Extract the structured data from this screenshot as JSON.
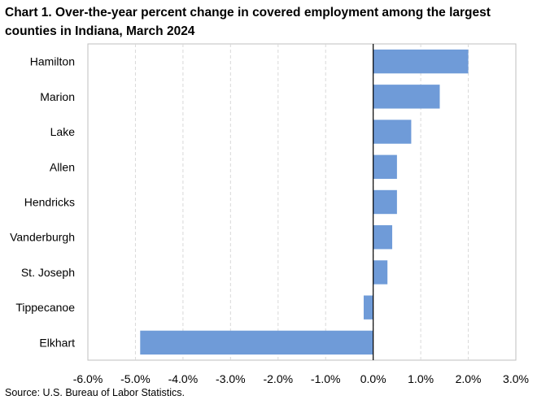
{
  "chart_data": {
    "type": "bar",
    "orientation": "horizontal",
    "title": "Chart 1. Over-the-year percent change in covered employment among the largest counties in Indiana, March 2024",
    "source": "Source: U.S. Bureau of Labor Statistics.",
    "categories": [
      "Hamilton",
      "Marion",
      "Lake",
      "Allen",
      "Hendricks",
      "Vanderburgh",
      "St. Joseph",
      "Tippecanoe",
      "Elkhart"
    ],
    "values": [
      2.0,
      1.4,
      0.8,
      0.5,
      0.5,
      0.4,
      0.3,
      -0.2,
      -4.9
    ],
    "xlim": [
      -6.0,
      3.0
    ],
    "xticks": [
      "-6.0%",
      "-5.0%",
      "-4.0%",
      "-3.0%",
      "-2.0%",
      "-1.0%",
      "0.0%",
      "1.0%",
      "2.0%",
      "3.0%"
    ],
    "grid": true,
    "bar_color": "#6f9bd8",
    "xlabel": "",
    "ylabel": ""
  }
}
